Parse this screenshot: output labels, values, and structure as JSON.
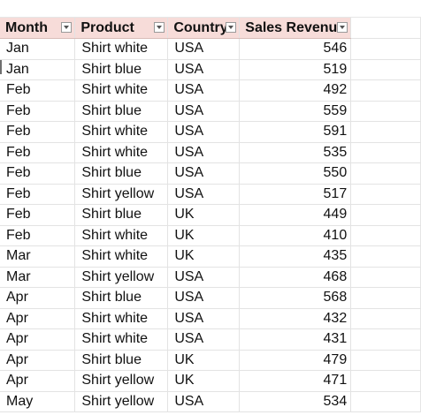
{
  "table": {
    "headers": [
      "Month",
      "Product",
      "Country",
      "Sales Revenue"
    ],
    "filter_icon": "dropdown-arrow-icon",
    "header_fill": "#f7dcd9",
    "rows": [
      [
        "Jan",
        "Shirt white",
        "USA",
        "546"
      ],
      [
        "Jan",
        "Shirt blue",
        "USA",
        "519"
      ],
      [
        "Feb",
        "Shirt white",
        "USA",
        "492"
      ],
      [
        "Feb",
        "Shirt blue",
        "USA",
        "559"
      ],
      [
        "Feb",
        "Shirt white",
        "USA",
        "591"
      ],
      [
        "Feb",
        "Shirt white",
        "USA",
        "535"
      ],
      [
        "Feb",
        "Shirt blue",
        "USA",
        "550"
      ],
      [
        "Feb",
        "Shirt yellow",
        "USA",
        "517"
      ],
      [
        "Feb",
        "Shirt blue",
        "UK",
        "449"
      ],
      [
        "Feb",
        "Shirt white",
        "UK",
        "410"
      ],
      [
        "Mar",
        "Shirt white",
        "UK",
        "435"
      ],
      [
        "Mar",
        "Shirt yellow",
        "USA",
        "468"
      ],
      [
        "Apr",
        "Shirt blue",
        "USA",
        "568"
      ],
      [
        "Apr",
        "Shirt white",
        "USA",
        "432"
      ],
      [
        "Apr",
        "Shirt white",
        "USA",
        "431"
      ],
      [
        "Apr",
        "Shirt blue",
        "UK",
        "479"
      ],
      [
        "Apr",
        "Shirt yellow",
        "UK",
        "471"
      ],
      [
        "May",
        "Shirt yellow",
        "USA",
        "534"
      ]
    ]
  }
}
